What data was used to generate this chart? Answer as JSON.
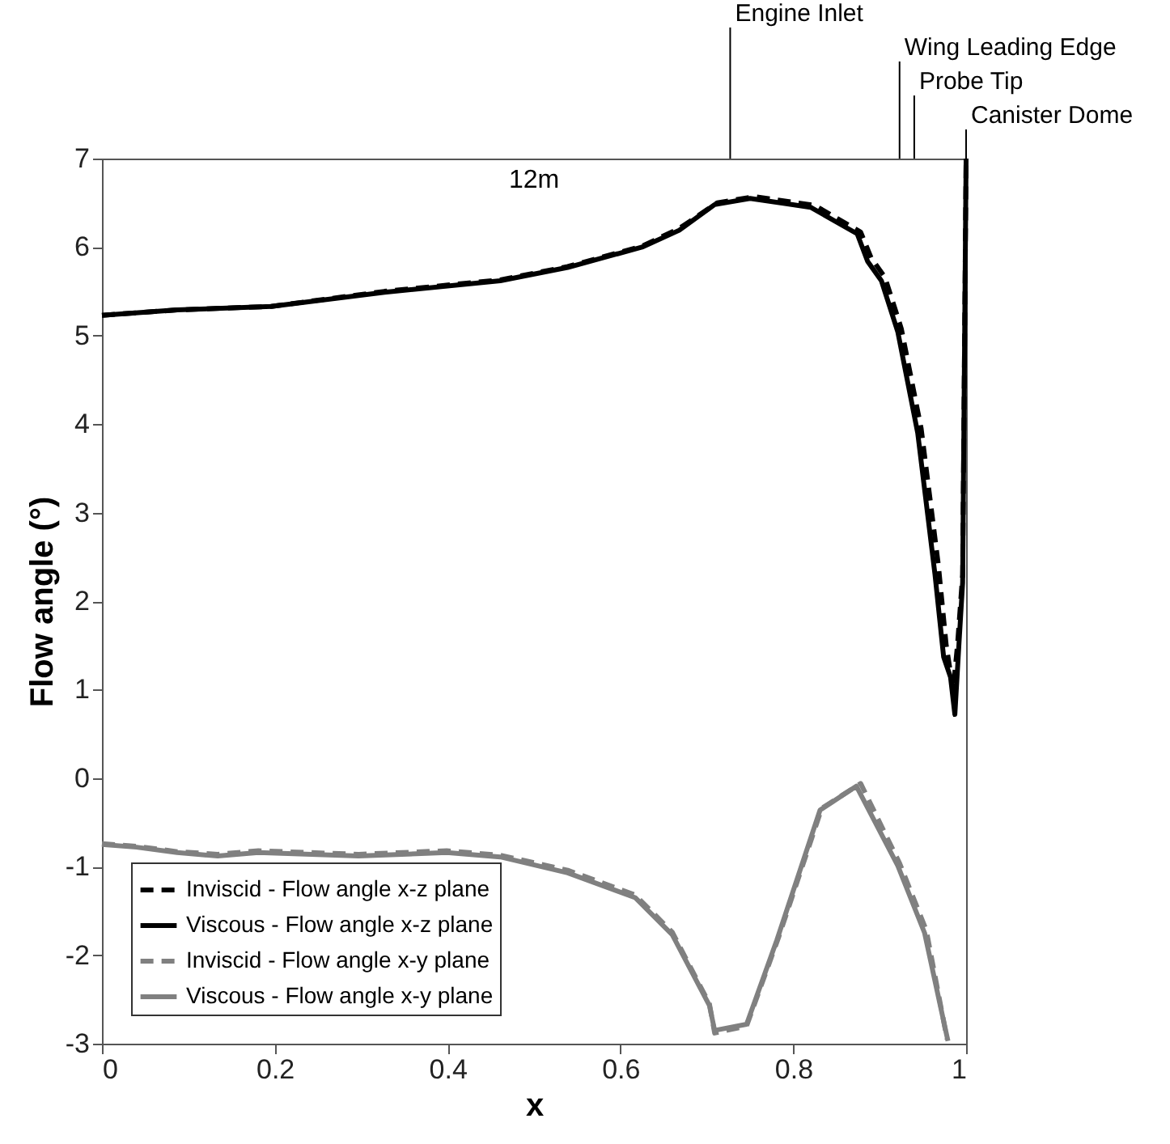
{
  "chart_data": {
    "type": "line",
    "xlabel": "x",
    "ylabel": "Flow angle (°)",
    "xlim": [
      0,
      1
    ],
    "ylim": [
      -3,
      7
    ],
    "xticks": [
      0,
      0.2,
      0.4,
      0.6,
      0.8,
      1
    ],
    "yticks": [
      -3,
      -2,
      -1,
      0,
      1,
      2,
      3,
      4,
      5,
      6,
      7
    ],
    "grid": false,
    "legend": "bottom left",
    "marker": "none",
    "annotations": [
      "12m"
    ],
    "ref_lines": [
      {
        "axis": "x",
        "value": 0.727,
        "label": "Engine Inlet"
      },
      {
        "axis": "x",
        "value": 0.923,
        "label": "Wing Leading Edge"
      },
      {
        "axis": "x",
        "value": 0.94,
        "label": "Probe Tip"
      },
      {
        "axis": "x",
        "value": 1.0,
        "label": "Canister Dome"
      }
    ],
    "series": [
      {
        "name": "Inviscid - Flow angle x-z plane",
        "color": "#000000",
        "line_style": "dashed",
        "x": [
          0,
          0.087,
          0.196,
          0.327,
          0.461,
          0.539,
          0.625,
          0.668,
          0.712,
          0.755,
          0.825,
          0.878,
          0.89,
          0.906,
          0.925,
          0.948,
          0.968,
          0.977,
          0.985,
          0.99,
          0.996,
          1.0
        ],
        "values": [
          5.23,
          5.29,
          5.33,
          5.5,
          5.63,
          5.78,
          6.01,
          6.21,
          6.5,
          6.57,
          6.47,
          6.17,
          5.88,
          5.66,
          5.08,
          3.95,
          2.4,
          1.5,
          1.0,
          1.5,
          2.3,
          7.0
        ]
      },
      {
        "name": "Viscous - Flow angle x-z plane",
        "color": "#000000",
        "line_style": "solid",
        "x": [
          0,
          0.087,
          0.196,
          0.327,
          0.461,
          0.539,
          0.625,
          0.668,
          0.709,
          0.75,
          0.82,
          0.874,
          0.886,
          0.902,
          0.921,
          0.944,
          0.964,
          0.974,
          0.982,
          0.987,
          0.992,
          0.996,
          1.0
        ],
        "values": [
          5.23,
          5.29,
          5.33,
          5.49,
          5.62,
          5.77,
          6.0,
          6.19,
          6.48,
          6.55,
          6.45,
          6.15,
          5.84,
          5.62,
          5.04,
          3.9,
          2.3,
          1.37,
          1.14,
          0.72,
          1.56,
          2.21,
          7.0
        ]
      },
      {
        "name": "Inviscid - Flow angle x-y plane",
        "color": "#808080",
        "line_style": "dashed",
        "x": [
          0,
          0.04,
          0.087,
          0.134,
          0.181,
          0.297,
          0.399,
          0.461,
          0.539,
          0.617,
          0.66,
          0.703,
          0.709,
          0.746,
          0.783,
          0.833,
          0.878,
          0.923,
          0.954,
          0.978
        ],
        "values": [
          -0.74,
          -0.77,
          -0.83,
          -0.86,
          -0.82,
          -0.86,
          -0.82,
          -0.87,
          -1.04,
          -1.32,
          -1.74,
          -2.55,
          -2.88,
          -2.8,
          -1.8,
          -0.34,
          -0.06,
          -0.96,
          -1.72,
          -2.95
        ]
      },
      {
        "name": "Viscous - Flow angle x-y plane",
        "color": "#808080",
        "line_style": "solid",
        "x": [
          0,
          0.04,
          0.087,
          0.134,
          0.181,
          0.297,
          0.399,
          0.461,
          0.539,
          0.617,
          0.66,
          0.703,
          0.709,
          0.746,
          0.781,
          0.831,
          0.873,
          0.921,
          0.952,
          0.979
        ],
        "values": [
          -0.75,
          -0.78,
          -0.84,
          -0.88,
          -0.84,
          -0.88,
          -0.84,
          -0.89,
          -1.07,
          -1.35,
          -1.77,
          -2.57,
          -2.85,
          -2.78,
          -1.83,
          -0.36,
          -0.09,
          -0.99,
          -1.75,
          -2.97
        ]
      }
    ]
  }
}
